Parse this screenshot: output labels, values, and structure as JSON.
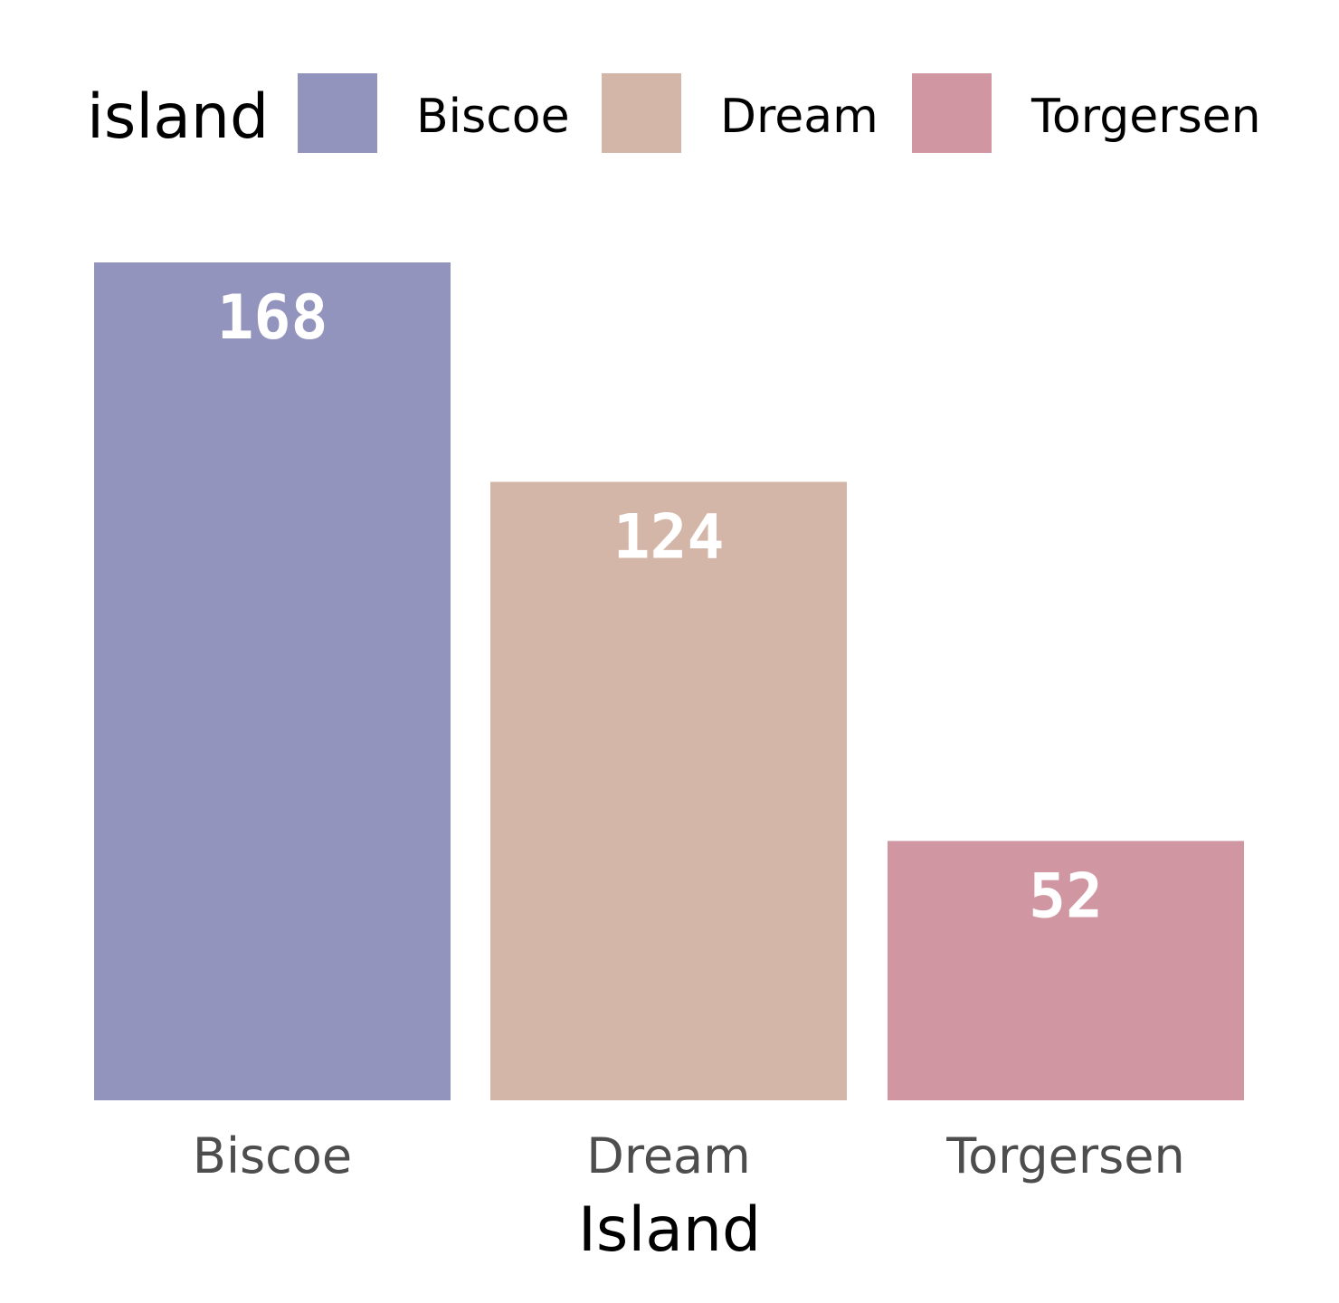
{
  "chart_data": {
    "type": "bar",
    "categories": [
      "Biscoe",
      "Dream",
      "Torgersen"
    ],
    "values": [
      168,
      124,
      52
    ],
    "colors": [
      "#9394bd",
      "#d4b6a8",
      "#d096a2"
    ],
    "xlabel": "Island",
    "ylabel": "",
    "ylim": [
      0,
      168
    ],
    "grid": false,
    "legend": {
      "title": "island",
      "position": "top",
      "entries": [
        "Biscoe",
        "Dream",
        "Torgersen"
      ]
    }
  }
}
